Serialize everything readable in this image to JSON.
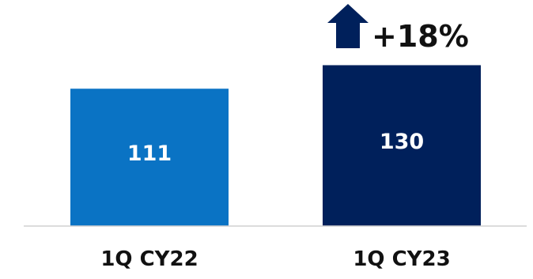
{
  "chart_data": {
    "type": "bar",
    "categories": [
      "1Q CY22",
      "1Q CY23"
    ],
    "values": [
      111,
      130
    ],
    "data_labels": [
      "111",
      "130"
    ],
    "bar_colors": [
      "#0A73C4",
      "#00205B"
    ],
    "annotation": {
      "text": "+18%",
      "icon": "up-arrow-icon",
      "color": "#00205B"
    },
    "title": "",
    "xlabel": "",
    "ylabel": "",
    "ylim": [
      0,
      145
    ],
    "grid": false,
    "legend": "none"
  }
}
